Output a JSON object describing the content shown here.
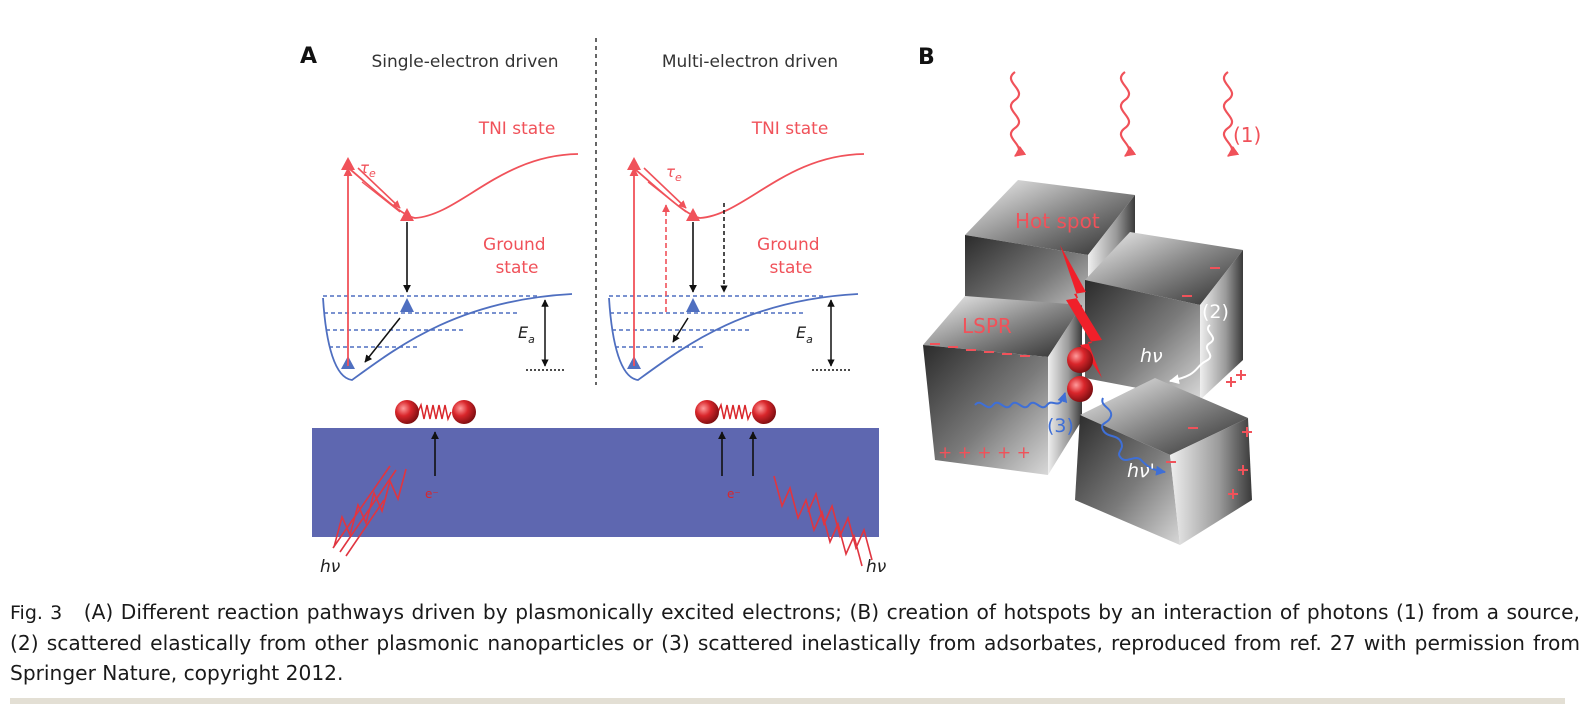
{
  "panel_a": {
    "label": "A",
    "left_heading": "Single-electron driven",
    "right_heading": "Multi-electron driven",
    "tni_label": "TNI state",
    "ground_label_line1": "Ground",
    "ground_label_line2": "state",
    "tau_symbol": "τ",
    "tau_subscript": "e",
    "activation_symbol": "E",
    "activation_subscript": "a",
    "electron_label": "e⁻",
    "photon_label": "hν"
  },
  "panel_b": {
    "label": "B",
    "hotspot_label": "Hot spot",
    "lspr_label": "LSPR",
    "marker_1": "(1)",
    "marker_2": "(2)",
    "marker_3": "(3)",
    "photon_label": "hν",
    "photon_inelastic_label": "hν'",
    "plus_row": "+ + + + +"
  },
  "colors": {
    "tni": "#f0525a",
    "ground": "#4f6fc0",
    "metal": "#5e67b0",
    "molecule": "#d9262b",
    "scatter_blue": "#3f6fd6"
  },
  "caption": {
    "fig_label": "Fig. 3",
    "text": "(A) Different reaction pathways driven by plasmonically excited electrons; (B) creation of hotspots by an interaction of photons (1) from a source, (2) scattered elastically from other plasmonic nanoparticles or (3) scattered inelastically from adsorbates, reproduced from ref. 27 with permission from Springer Nature, copyright 2012."
  }
}
